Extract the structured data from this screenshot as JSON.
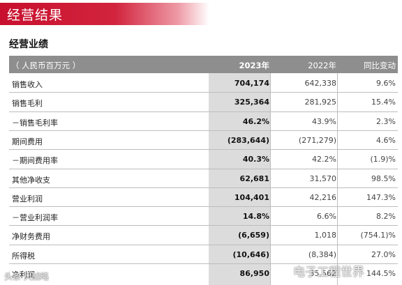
{
  "banner_title": "经营结果",
  "section_title": "经营业绩",
  "table": {
    "header": {
      "unit": "（ 人民币百万元 ）",
      "col1": "2023年",
      "col2": "2022年",
      "col3": "同比变动"
    },
    "rows": [
      {
        "label": "销售收入",
        "v2023": "704,174",
        "v2022": "642,338",
        "change": "9.6%"
      },
      {
        "label": "销售毛利",
        "v2023": "325,364",
        "v2022": "281,925",
        "change": "15.4%"
      },
      {
        "label": "－销售毛利率",
        "v2023": "46.2%",
        "v2022": "43.9%",
        "change": "2.3%"
      },
      {
        "label": "期间费用",
        "v2023": "(283,644)",
        "v2022": "(271,279)",
        "change": "4.6%"
      },
      {
        "label": "－期间费用率",
        "v2023": "40.3%",
        "v2022": "42.2%",
        "change": "(1.9)%"
      },
      {
        "label": "其他净收支",
        "v2023": "62,681",
        "v2022": "31,570",
        "change": "98.5%"
      },
      {
        "label": "营业利润",
        "v2023": "104,401",
        "v2022": "42,216",
        "change": "147.3%"
      },
      {
        "label": "－营业利润率",
        "v2023": "14.8%",
        "v2022": "6.6%",
        "change": "8.2%"
      },
      {
        "label": "净财务费用",
        "v2023": "(6,659)",
        "v2022": "1,018",
        "change": "(754.1)%"
      },
      {
        "label": "所得税",
        "v2023": "(10,646)",
        "v2022": "(8,384)",
        "change": "27.0%"
      },
      {
        "label": "净利润",
        "v2023": "86,950",
        "v2022": "35,562",
        "change": "144.5%"
      }
    ]
  },
  "watermarks": {
    "left": "头条 大战略",
    "right": "电子工程世界"
  }
}
